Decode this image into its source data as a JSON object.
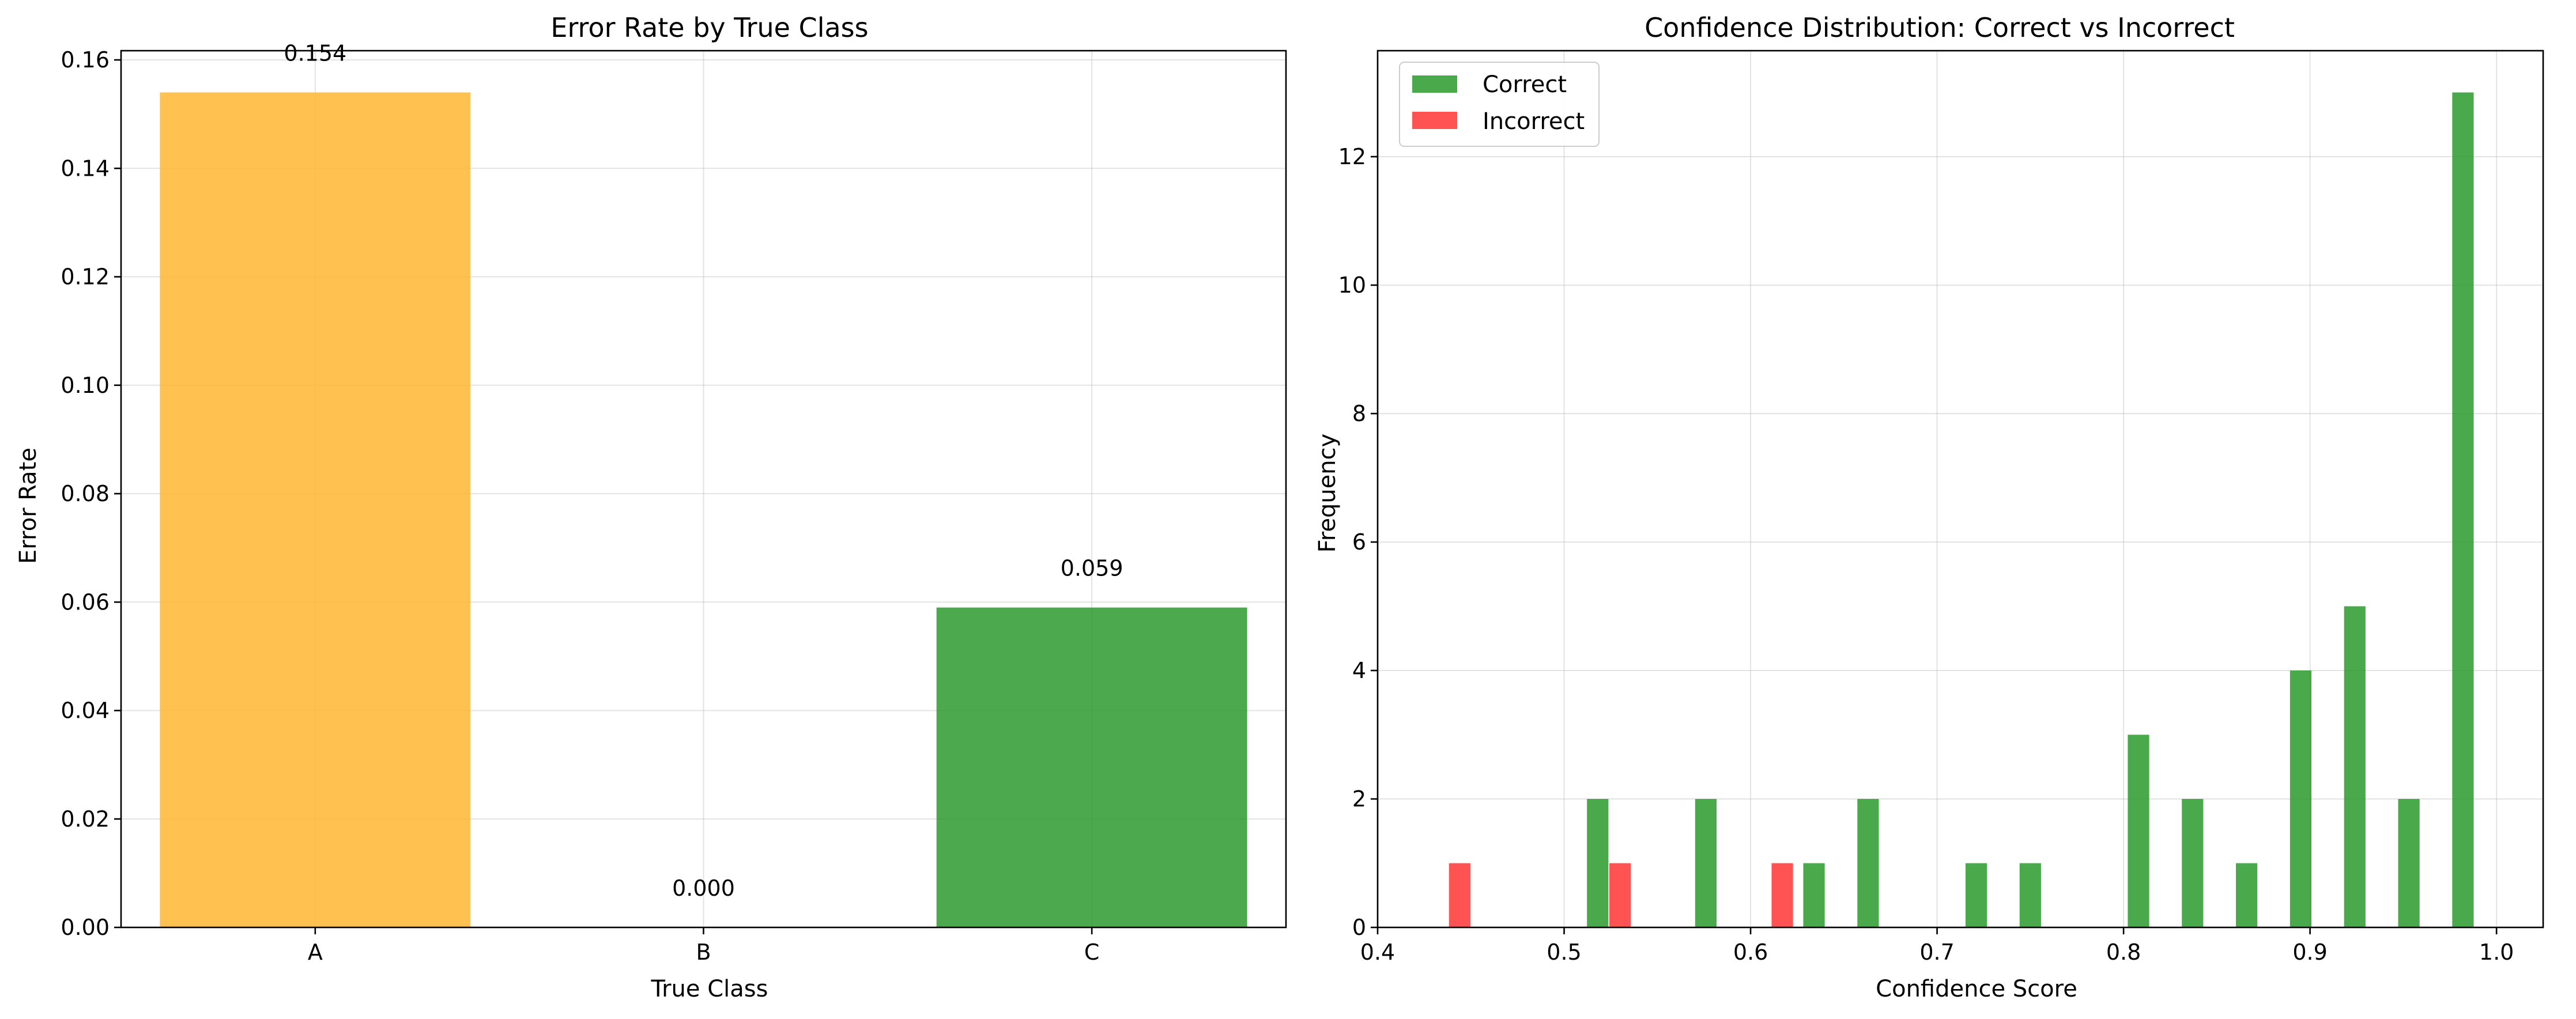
{
  "chart_data": [
    {
      "type": "bar",
      "title": "Error Rate by True Class",
      "xlabel": "True Class",
      "ylabel": "Error Rate",
      "categories": [
        "A",
        "B",
        "C"
      ],
      "values": [
        0.154,
        0.0,
        0.059
      ],
      "data_labels": [
        "0.154",
        "0.000",
        "0.059"
      ],
      "colors": [
        "#ffb732",
        "#2ca02c",
        "#2e9a2e"
      ],
      "bar_alpha": 0.85,
      "ylim": [
        0,
        0.1617
      ],
      "yticks": [
        0.0,
        0.02,
        0.04,
        0.06,
        0.08,
        0.1,
        0.12,
        0.14,
        0.16
      ],
      "ytick_labels": [
        "0.00",
        "0.02",
        "0.04",
        "0.06",
        "0.08",
        "0.10",
        "0.12",
        "0.14",
        "0.16"
      ],
      "grid": true
    },
    {
      "type": "bar",
      "subtype": "histogram",
      "title": "Confidence Distribution: Correct vs Incorrect",
      "xlabel": "Confidence Score",
      "ylabel": "Frequency",
      "xlim": [
        0.4,
        1.025
      ],
      "ylim": [
        0,
        13.65
      ],
      "xticks": [
        0.4,
        0.5,
        0.6,
        0.7,
        0.8,
        0.9,
        1.0
      ],
      "xtick_labels": [
        "0.4",
        "0.5",
        "0.6",
        "0.7",
        "0.8",
        "0.9",
        "1.0"
      ],
      "yticks": [
        0,
        2,
        4,
        6,
        8,
        10,
        12
      ],
      "ytick_labels": [
        "0",
        "2",
        "4",
        "6",
        "8",
        "10",
        "12"
      ],
      "bar_width": 0.0115,
      "grid": true,
      "legend_position": "top-left",
      "series": [
        {
          "name": "Correct",
          "color": "#2a9a2a",
          "x": [
            0.518,
            0.576,
            0.634,
            0.663,
            0.721,
            0.75,
            0.808,
            0.837,
            0.866,
            0.895,
            0.924,
            0.953,
            0.982
          ],
          "values": [
            2,
            2,
            1,
            2,
            1,
            1,
            3,
            2,
            1,
            4,
            5,
            2,
            13
          ]
        },
        {
          "name": "Incorrect",
          "color": "#ff3535",
          "x": [
            0.444,
            0.53,
            0.617
          ],
          "values": [
            1,
            1,
            1
          ]
        }
      ]
    }
  ]
}
